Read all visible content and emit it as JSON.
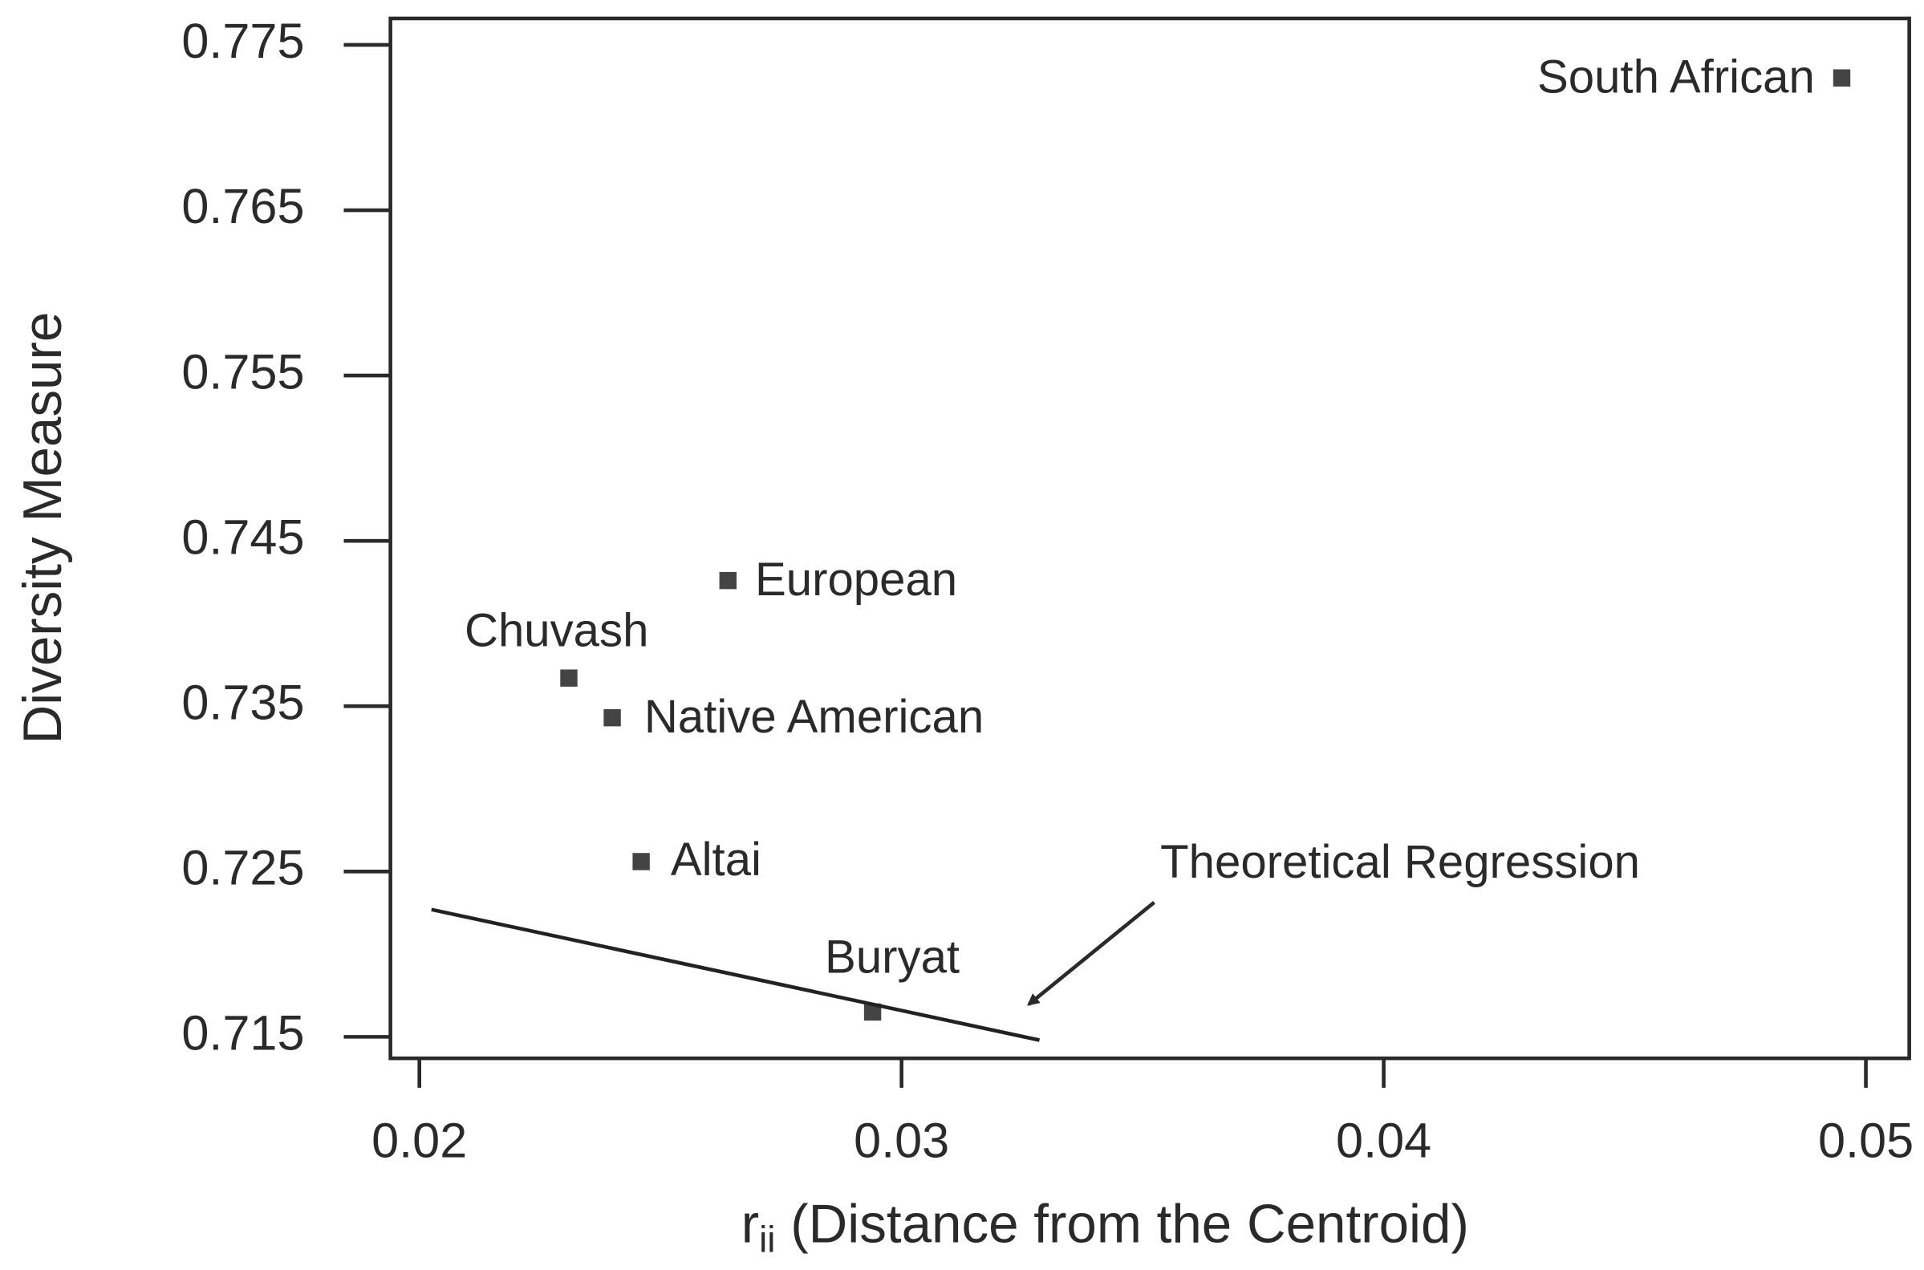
{
  "chart_data": {
    "type": "scatter",
    "y_label": "Diversity Measure",
    "x_label": {
      "symbol": "r",
      "subscript": "ii",
      "text": " (Distance from the Centroid)"
    },
    "xlim": [
      0.0194,
      0.0509
    ],
    "ylim": [
      0.7137,
      0.7766
    ],
    "xticks": [
      0.02,
      0.03,
      0.04,
      0.05
    ],
    "yticks": [
      0.715,
      0.725,
      0.735,
      0.745,
      0.755,
      0.765,
      0.775
    ],
    "series": [
      {
        "color": "#444444",
        "labels": [
          "South African",
          "European",
          "Chuvash",
          "Native American",
          "Altai",
          "Buryat"
        ],
        "x": [
          0.0495,
          0.0264,
          0.0231,
          0.024,
          0.0246,
          0.0294
        ],
        "values": [
          0.773,
          0.7426,
          0.7367,
          0.7343,
          0.7256,
          0.7165
        ]
      }
    ],
    "regression": {
      "x": [
        0.02025,
        0.03286
      ],
      "values": [
        0.7227,
        0.7148
      ],
      "color": "#222222"
    },
    "annotation": "Theoretical Regression"
  }
}
